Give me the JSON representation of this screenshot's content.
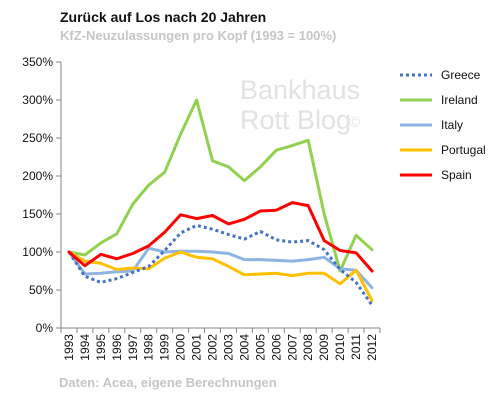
{
  "chart_data": {
    "type": "line",
    "title": "Zurück auf Los nach 20 Jahren",
    "subtitle": "KfZ-Neuzulassungen pro Kopf (1993 = 100%)",
    "source": "Daten: Acea, eigene Berechnungen",
    "watermark": {
      "line1": "Bankhaus",
      "line2": "Rott Blog",
      "mark": "©"
    },
    "x": [
      "1993",
      "1994",
      "1995",
      "1996",
      "1997",
      "1998",
      "1999",
      "2000",
      "2001",
      "2002",
      "2003",
      "2004",
      "2005",
      "2006",
      "2007",
      "2008",
      "2009",
      "2010",
      "2011",
      "2012"
    ],
    "yticks": [
      "0%",
      "50%",
      "100%",
      "150%",
      "200%",
      "250%",
      "300%",
      "350%"
    ],
    "ylim": [
      0,
      350
    ],
    "grid": false,
    "legend_position": "right",
    "series": [
      {
        "name": "Greece",
        "color": "#4472c4",
        "dash": true,
        "values": [
          100,
          68,
          60,
          65,
          73,
          81,
          102,
          125,
          135,
          130,
          123,
          117,
          127,
          116,
          113,
          115,
          103,
          77,
          60,
          30
        ]
      },
      {
        "name": "Ireland",
        "color": "#92d050",
        "dash": false,
        "values": [
          100,
          96,
          112,
          124,
          163,
          188,
          205,
          255,
          300,
          220,
          212,
          194,
          212,
          234,
          240,
          247,
          150,
          75,
          122,
          103
        ]
      },
      {
        "name": "Italy",
        "color": "#8eb4e3",
        "dash": false,
        "values": [
          100,
          71,
          72,
          74,
          75,
          105,
          100,
          101,
          101,
          100,
          98,
          90,
          90,
          89,
          88,
          90,
          93,
          78,
          76,
          53
        ]
      },
      {
        "name": "Portugal",
        "color": "#ffc000",
        "dash": false,
        "values": [
          100,
          88,
          85,
          77,
          79,
          78,
          92,
          100,
          93,
          91,
          81,
          70,
          71,
          72,
          69,
          72,
          72,
          58,
          76,
          36
        ]
      },
      {
        "name": "Spain",
        "color": "#ff0000",
        "dash": false,
        "values": [
          100,
          82,
          97,
          91,
          98,
          108,
          126,
          149,
          144,
          148,
          137,
          143,
          154,
          155,
          165,
          161,
          115,
          102,
          99,
          75
        ]
      }
    ]
  }
}
